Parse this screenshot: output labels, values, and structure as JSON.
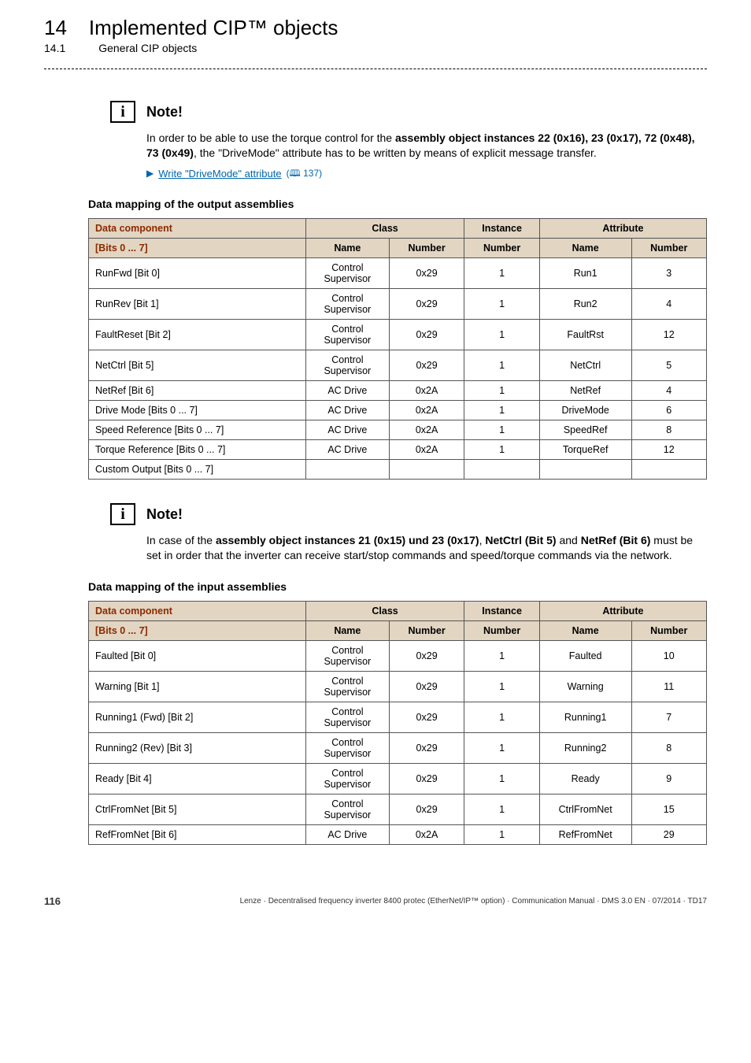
{
  "header": {
    "chapter_num": "14",
    "chapter_title": "Implemented CIP™ objects",
    "section_num": "14.1",
    "section_title": "General CIP objects"
  },
  "note1": {
    "label": "Note!",
    "body_pre": "In order to be able to use the torque control for the ",
    "body_bold": "assembly object instances 22 (0x16), 23 (0x17), 72 (0x48), 73 (0x49)",
    "body_post": ", the \"DriveMode\" attribute has to be written by means of explicit message transfer.",
    "link_text": "Write \"DriveMode\" attribute",
    "link_page": "137"
  },
  "output_section_title": "Data mapping of the output assemblies",
  "table_headers": {
    "component": "Data component",
    "bits": "[Bits 0 ... 7]",
    "class": "Class",
    "class_name": "Name",
    "class_number": "Number",
    "instance": "Instance",
    "instance_number": "Number",
    "attribute": "Attribute",
    "attr_name": "Name",
    "attr_number": "Number"
  },
  "output_rows": [
    {
      "comp": "RunFwd [Bit 0]",
      "cname": "Control Supervisor",
      "cnum": "0x29",
      "inst": "1",
      "aname": "Run1",
      "anum": "3"
    },
    {
      "comp": "RunRev [Bit 1]",
      "cname": "Control Supervisor",
      "cnum": "0x29",
      "inst": "1",
      "aname": "Run2",
      "anum": "4"
    },
    {
      "comp": "FaultReset [Bit 2]",
      "cname": "Control Supervisor",
      "cnum": "0x29",
      "inst": "1",
      "aname": "FaultRst",
      "anum": "12"
    },
    {
      "comp": "NetCtrl [Bit 5]",
      "cname": "Control Supervisor",
      "cnum": "0x29",
      "inst": "1",
      "aname": "NetCtrl",
      "anum": "5"
    },
    {
      "comp": "NetRef [Bit 6]",
      "cname": "AC Drive",
      "cnum": "0x2A",
      "inst": "1",
      "aname": "NetRef",
      "anum": "4"
    },
    {
      "comp": "Drive Mode [Bits 0 ... 7]",
      "cname": "AC Drive",
      "cnum": "0x2A",
      "inst": "1",
      "aname": "DriveMode",
      "anum": "6"
    },
    {
      "comp": "Speed Reference [Bits 0 ... 7]",
      "cname": "AC Drive",
      "cnum": "0x2A",
      "inst": "1",
      "aname": "SpeedRef",
      "anum": "8"
    },
    {
      "comp": "Torque Reference [Bits 0 ... 7]",
      "cname": "AC Drive",
      "cnum": "0x2A",
      "inst": "1",
      "aname": "TorqueRef",
      "anum": "12"
    },
    {
      "comp": "Custom Output [Bits 0 ... 7]",
      "cname": "",
      "cnum": "",
      "inst": "",
      "aname": "",
      "anum": ""
    }
  ],
  "note2": {
    "label": "Note!",
    "pre": "In case of the ",
    "bold1": "assembly object instances 21 (0x15) und 23 (0x17)",
    "mid1": ", ",
    "bold2": "NetCtrl (Bit 5)",
    "mid2": " and ",
    "bold3": "NetRef (Bit 6)",
    "post": " must be set in order that the inverter can receive start/stop commands and speed/torque commands via the network."
  },
  "input_section_title": "Data mapping of the input assemblies",
  "input_rows": [
    {
      "comp": "Faulted [Bit 0]",
      "cname": "Control Supervisor",
      "cnum": "0x29",
      "inst": "1",
      "aname": "Faulted",
      "anum": "10"
    },
    {
      "comp": "Warning [Bit 1]",
      "cname": "Control Supervisor",
      "cnum": "0x29",
      "inst": "1",
      "aname": "Warning",
      "anum": "11"
    },
    {
      "comp": "Running1 (Fwd) [Bit 2]",
      "cname": "Control Supervisor",
      "cnum": "0x29",
      "inst": "1",
      "aname": "Running1",
      "anum": "7"
    },
    {
      "comp": "Running2 (Rev) [Bit 3]",
      "cname": "Control Supervisor",
      "cnum": "0x29",
      "inst": "1",
      "aname": "Running2",
      "anum": "8"
    },
    {
      "comp": "Ready [Bit 4]",
      "cname": "Control Supervisor",
      "cnum": "0x29",
      "inst": "1",
      "aname": "Ready",
      "anum": "9"
    },
    {
      "comp": "CtrlFromNet [Bit 5]",
      "cname": "Control Supervisor",
      "cnum": "0x29",
      "inst": "1",
      "aname": "CtrlFromNet",
      "anum": "15"
    },
    {
      "comp": "RefFromNet [Bit 6]",
      "cname": "AC Drive",
      "cnum": "0x2A",
      "inst": "1",
      "aname": "RefFromNet",
      "anum": "29"
    }
  ],
  "footer": {
    "page": "116",
    "text": "Lenze · Decentralised frequency inverter 8400 protec (EtherNet/IP™ option) · Communication Manual · DMS 3.0 EN · 07/2014 · TD17"
  }
}
